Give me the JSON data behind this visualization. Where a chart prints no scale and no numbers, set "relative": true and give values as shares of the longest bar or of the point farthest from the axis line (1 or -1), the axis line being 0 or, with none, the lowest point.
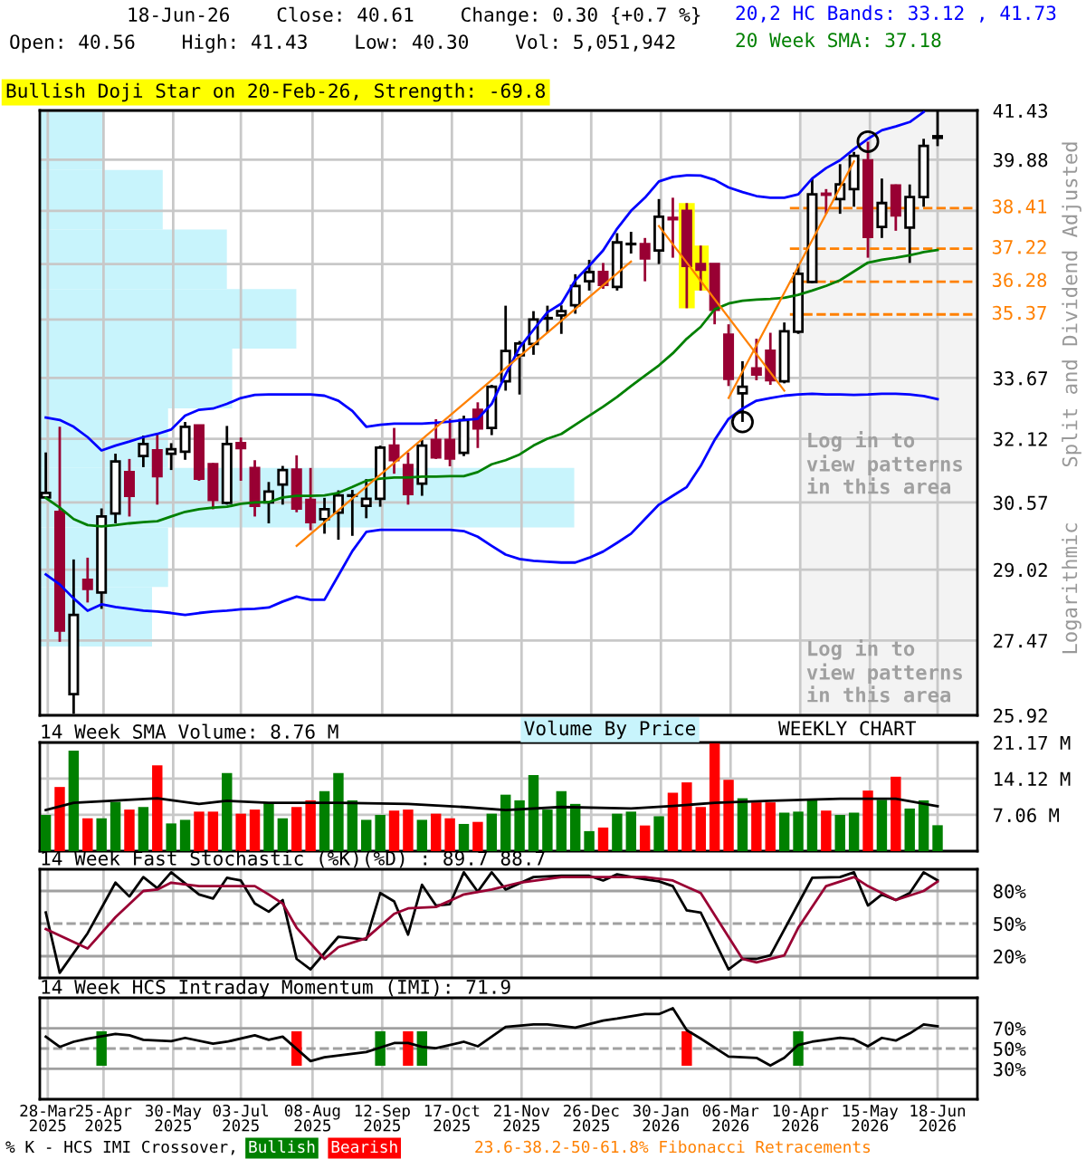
{
  "chart_data": [
    {
      "type": "candlestick",
      "title": "18-Jun-26    Close: 40.61    Change: 0.30 {+0.7 %}",
      "subtitle": "Open: 40.56    High: 41.43    Low: 40.30    Vol: 5,051,942",
      "ylabel": "Split and Dividend Adjusted",
      "annotations": [
        "Bullish Doji Star on 20-Feb-26, Strength: -69.8",
        "Log in to\nview patterns\nin this area",
        "Logarithmic",
        "WEEKLY CHART",
        "23.6-38.2-50-61.8% Fibonacci Retracements"
      ],
      "log": true,
      "grid": true,
      "tick_labels": "y",
      "colors": [
        "#ffffff",
        "#990033",
        "#ffffff",
        "#990033",
        "#ffffff",
        "#ffffff",
        "#990033",
        "#ffffff",
        "#990033",
        "#ffffff",
        "#ffffff",
        "#990033",
        "#990033",
        "#ffffff",
        "#990033",
        "#990033",
        "#ffffff",
        "#ffffff",
        "#990033",
        "#990033",
        "#ffffff",
        "#ffffff",
        "#ffffff",
        "#ffffff",
        "#ffffff",
        "#990033",
        "#990033",
        "#ffffff",
        "#990033",
        "#990033",
        "#ffffff",
        "#990033",
        "#ffffff",
        "#ffffff",
        "#ffffff",
        "#ffffff",
        "#ffffff",
        "#ffffff",
        "#ffffff",
        "#ffffff",
        "#990033",
        "#ffffff",
        "#ffffff",
        "#990033",
        "#ffffff",
        "#990033",
        "#990033",
        "#990033",
        "#990033",
        "#990033",
        "#ffffff",
        "#990033",
        "#990033",
        "#ffffff",
        "#ffffff",
        "#ffffff",
        "#990033",
        "#ffffff",
        "#ffffff",
        "#990033",
        "#ffffff",
        "#990033",
        "#ffffff",
        "#ffffff",
        "#ffffff"
      ],
      "xlim": [
        "2025-03-24",
        "2026-07-08"
      ],
      "ylim": [
        25.92,
        41.43
      ],
      "yticks": [
        41.43,
        39.88,
        {
          "value": 38.33,
          "label": null
        },
        {
          "value": 36.78,
          "label": null
        },
        {
          "value": 35.23,
          "label": null
        },
        33.67,
        32.12,
        30.57,
        29.02,
        27.47,
        25.92
      ],
      "xticks": [
        "2025-03-28",
        "2025-04-25",
        "2025-05-30",
        "2025-07-03",
        "2025-08-08",
        "2025-09-12",
        "2025-10-17",
        "2025-11-21",
        "2025-12-26",
        "2026-01-30",
        "2026-03-06",
        "2026-04-10",
        "2026-05-15",
        "2026-06-18"
      ],
      "x": [
        "2025-03-27",
        "2025-04-03",
        "2025-04-10",
        "2025-04-17",
        "2025-04-24",
        "2025-05-01",
        "2025-05-08",
        "2025-05-15",
        "2025-05-22",
        "2025-05-29",
        "2025-06-05",
        "2025-06-12",
        "2025-06-19",
        "2025-06-26",
        "2025-07-03",
        "2025-07-10",
        "2025-07-17",
        "2025-07-24",
        "2025-07-31",
        "2025-08-07",
        "2025-08-14",
        "2025-08-21",
        "2025-08-28",
        "2025-09-04",
        "2025-09-11",
        "2025-09-18",
        "2025-09-25",
        "2025-10-02",
        "2025-10-09",
        "2025-10-16",
        "2025-10-23",
        "2025-10-30",
        "2025-11-06",
        "2025-11-13",
        "2025-11-20",
        "2025-11-27",
        "2025-12-04",
        "2025-12-11",
        "2025-12-18",
        "2025-12-25",
        "2026-01-01",
        "2026-01-08",
        "2026-01-15",
        "2026-01-22",
        "2026-01-29",
        "2026-02-05",
        "2026-02-12",
        "2026-02-19",
        "2026-02-26",
        "2026-03-05",
        "2026-03-12",
        "2026-03-19",
        "2026-03-26",
        "2026-04-02",
        "2026-04-09",
        "2026-04-16",
        "2026-04-23",
        "2026-04-30",
        "2026-05-07",
        "2026-05-14",
        "2026-05-21",
        "2026-05-28",
        "2026-06-04",
        "2026-06-11",
        "2026-06-18"
      ],
      "ohlc": [
        [
          30.69,
          31.78,
          30.66,
          30.8
        ],
        [
          30.35,
          32.42,
          27.44,
          27.68
        ],
        [
          26.35,
          29.25,
          25.95,
          28.02
        ],
        [
          28.79,
          29.29,
          28.29,
          28.59
        ],
        [
          28.51,
          30.43,
          28.15,
          30.24
        ],
        [
          30.31,
          31.75,
          30.08,
          31.56
        ],
        [
          31.3,
          31.62,
          30.24,
          30.73
        ],
        [
          31.69,
          32.2,
          31.42,
          31.99
        ],
        [
          31.83,
          32.24,
          30.52,
          31.2
        ],
        [
          31.75,
          32.01,
          31.35,
          31.86
        ],
        [
          31.8,
          32.54,
          31.6,
          32.42
        ],
        [
          32.45,
          32.47,
          31.09,
          31.14
        ],
        [
          31.49,
          31.52,
          30.41,
          30.63
        ],
        [
          30.56,
          32.44,
          30.52,
          31.99
        ],
        [
          32.01,
          32.15,
          31.09,
          31.89
        ],
        [
          31.4,
          31.59,
          30.24,
          30.49
        ],
        [
          30.57,
          31.06,
          30.08,
          30.83
        ],
        [
          31.0,
          31.45,
          30.52,
          31.35
        ],
        [
          31.36,
          31.71,
          30.34,
          30.43
        ],
        [
          30.63,
          31.4,
          29.92,
          30.11
        ],
        [
          30.18,
          30.68,
          29.84,
          30.41
        ],
        [
          30.33,
          30.86,
          29.7,
          30.74
        ],
        [
          30.73,
          30.87,
          29.79,
          30.74
        ],
        [
          30.49,
          31.13,
          30.2,
          30.66
        ],
        [
          30.66,
          31.95,
          30.47,
          31.9
        ],
        [
          31.95,
          32.39,
          31.26,
          31.59
        ],
        [
          31.47,
          31.78,
          30.52,
          30.77
        ],
        [
          31.02,
          32.09,
          30.73,
          31.95
        ],
        [
          32.09,
          32.61,
          31.62,
          31.66
        ],
        [
          32.09,
          32.62,
          31.44,
          31.63
        ],
        [
          31.77,
          32.7,
          31.69,
          32.59
        ],
        [
          32.85,
          33.04,
          31.89,
          32.38
        ],
        [
          32.39,
          33.49,
          32.21,
          33.44
        ],
        [
          33.58,
          35.61,
          33.34,
          34.38
        ],
        [
          34.27,
          34.65,
          33.24,
          34.58
        ],
        [
          34.57,
          35.46,
          34.28,
          35.23
        ],
        [
          35.26,
          35.61,
          34.87,
          35.27
        ],
        [
          35.34,
          35.62,
          34.84,
          35.46
        ],
        [
          35.62,
          36.49,
          35.39,
          36.16
        ],
        [
          36.29,
          36.9,
          36.03,
          36.55
        ],
        [
          36.55,
          36.81,
          36.08,
          36.19
        ],
        [
          36.13,
          37.67,
          36.03,
          37.4
        ],
        [
          37.35,
          37.71,
          37.08,
          37.36
        ],
        [
          37.35,
          37.53,
          36.29,
          36.94
        ],
        [
          37.17,
          38.68,
          36.78,
          38.15
        ],
        [
          38.12,
          38.72,
          36.96,
          38.08
        ],
        [
          38.33,
          38.56,
          35.54,
          36.73
        ],
        [
          36.78,
          37.31,
          36.03,
          36.62
        ],
        [
          36.78,
          36.79,
          35.1,
          35.5
        ],
        [
          34.82,
          35.1,
          33.46,
          33.65
        ],
        [
          33.27,
          34.11,
          32.54,
          33.44
        ],
        [
          33.92,
          34.71,
          33.61,
          33.76
        ],
        [
          34.39,
          34.87,
          33.49,
          33.61
        ],
        [
          33.58,
          35.15,
          33.53,
          34.91
        ],
        [
          34.9,
          36.78,
          34.84,
          36.5
        ],
        [
          36.27,
          39.3,
          36.24,
          38.82
        ],
        [
          38.84,
          38.98,
          38.24,
          38.81
        ],
        [
          38.68,
          39.74,
          38.24,
          39.12
        ],
        [
          38.98,
          40.12,
          38.45,
          40.0
        ],
        [
          39.86,
          40.44,
          36.96,
          37.56
        ],
        [
          37.85,
          39.3,
          37.53,
          38.56
        ],
        [
          39.09,
          39.12,
          37.74,
          38.19
        ],
        [
          37.83,
          39.12,
          36.81,
          38.74
        ],
        [
          38.74,
          40.53,
          38.45,
          40.31
        ],
        [
          40.56,
          41.43,
          40.3,
          40.61
        ]
      ],
      "series": [
        {
          "name": "20,2 HC Bands: 33.12 , 41.73",
          "type": "line",
          "color": "#0000ff",
          "values": [
            32.65,
            32.59,
            32.42,
            32.16,
            31.83,
            31.95,
            32.05,
            32.16,
            32.24,
            32.35,
            32.7,
            32.85,
            32.88,
            33.0,
            33.15,
            33.23,
            33.24,
            33.24,
            33.24,
            33.24,
            33.21,
            33.08,
            32.82,
            32.42,
            32.47,
            32.5,
            32.5,
            32.5,
            32.52,
            32.55,
            32.59,
            32.62,
            33.0,
            33.76,
            34.47,
            34.95,
            35.43,
            35.67,
            36.32,
            36.73,
            37.17,
            37.8,
            38.33,
            38.72,
            39.21,
            39.35,
            39.4,
            39.39,
            39.26,
            39.03,
            38.89,
            38.77,
            38.72,
            38.72,
            38.82,
            39.3,
            39.62,
            39.86,
            40.21,
            40.53,
            40.8,
            40.92,
            41.06,
            41.38,
            null
          ]
        },
        {
          "type": "line",
          "color": "#0000ff",
          "values": [
            28.91,
            28.69,
            28.38,
            28.11,
            28.25,
            28.19,
            28.15,
            28.11,
            28.09,
            28.06,
            28.02,
            28.06,
            28.09,
            28.11,
            28.14,
            28.15,
            28.18,
            28.31,
            28.42,
            28.35,
            28.35,
            28.89,
            29.44,
            29.88,
            29.93,
            29.93,
            29.93,
            29.93,
            29.93,
            29.93,
            29.9,
            29.77,
            29.56,
            29.36,
            29.26,
            29.22,
            29.2,
            29.18,
            29.18,
            29.29,
            29.43,
            29.63,
            29.84,
            30.18,
            30.52,
            30.73,
            30.94,
            31.45,
            32.09,
            32.62,
            32.88,
            33.08,
            33.15,
            33.21,
            33.24,
            33.26,
            33.24,
            33.24,
            33.23,
            33.24,
            33.26,
            33.26,
            33.24,
            33.2,
            33.12
          ]
        },
        {
          "name": "20 Week SMA: 37.18",
          "type": "line",
          "color": "#008000",
          "values": [
            30.68,
            30.45,
            30.18,
            30.04,
            30.01,
            30.04,
            30.08,
            30.11,
            30.13,
            30.24,
            30.35,
            30.41,
            30.45,
            30.47,
            30.54,
            30.57,
            30.58,
            30.69,
            30.73,
            30.73,
            30.74,
            30.8,
            30.94,
            31.09,
            31.14,
            31.17,
            31.17,
            31.19,
            31.19,
            31.2,
            31.2,
            31.3,
            31.49,
            31.59,
            31.73,
            31.95,
            32.12,
            32.24,
            32.47,
            32.7,
            32.93,
            33.18,
            33.46,
            33.73,
            34.0,
            34.32,
            34.71,
            35.03,
            35.51,
            35.67,
            35.75,
            35.78,
            35.8,
            35.83,
            35.91,
            36.03,
            36.16,
            36.32,
            36.57,
            36.82,
            36.9,
            36.96,
            37.03,
            37.12,
            37.18
          ]
        },
        {
          "type": "line",
          "color": "#ff8000",
          "x": [
            "2025-07-31",
            "2026-01-15"
          ],
          "values": [
            29.56,
            36.85
          ]
        },
        {
          "type": "line",
          "color": "#ff8000",
          "x": [
            "2026-01-29",
            "2026-04-02"
          ],
          "values": [
            37.88,
            33.34
          ]
        },
        {
          "type": "line",
          "color": "#ff8000",
          "x": [
            "2026-03-05",
            "2026-05-07"
          ],
          "values": [
            33.15,
            39.83
          ]
        }
      ],
      "ref_lines": [
        {
          "axis": "y",
          "value": 38.41,
          "label": "38.41",
          "color": "#ff8000",
          "line_style": "dashed"
        },
        {
          "axis": "y",
          "value": 37.22,
          "label": "37.22",
          "color": "#ff8000",
          "line_style": "dashed"
        },
        {
          "axis": "y",
          "value": 36.28,
          "label": "36.28",
          "color": "#ff8000",
          "line_style": "dashed"
        },
        {
          "axis": "y",
          "value": 35.37,
          "label": "35.37",
          "color": "#ff8000",
          "line_style": "dashed"
        }
      ],
      "bands": [
        {
          "axis": "x",
          "from": "2026-04-10",
          "to": "2026-07-08",
          "label": "Log in to\nview patterns\nin this area",
          "color": "#f3f3f3"
        }
      ]
    },
    {
      "type": "bar",
      "orientation": "horizontal",
      "relative": true,
      "categories": [
        null,
        null,
        null,
        null,
        null,
        null,
        null,
        null,
        null
      ],
      "series": [
        {
          "name": "Volume By Price",
          "color": "#c8f4fc",
          "values": [
            0.12,
            0.23,
            0.35,
            0.48,
            0.36,
            0.24,
            1,
            0.24,
            0.21
          ]
        }
      ]
    },
    {
      "type": "bar",
      "title": "14 Week SMA Volume: 8.76 M",
      "grid": true,
      "tick_labels": "y",
      "xlim": [
        "2025-03-24",
        "2026-07-08"
      ],
      "ylim": [
        0,
        21.17
      ],
      "yticks": [
        {
          "value": 21.17,
          "label": "21.17 M"
        },
        {
          "value": 14.12,
          "label": "14.12 M"
        },
        {
          "value": 7.06,
          "label": "7.06 M"
        }
      ],
      "xticks": [
        "2025-03-28",
        "2025-04-25",
        "2025-05-30",
        "2025-07-03",
        "2025-08-08",
        "2025-09-12",
        "2025-10-17",
        "2025-11-21",
        "2025-12-26",
        "2026-01-30",
        "2026-03-06",
        "2026-04-10",
        "2026-05-15",
        "2026-06-18"
      ],
      "x": [
        "2025-03-27",
        "2025-04-03",
        "2025-04-10",
        "2025-04-17",
        "2025-04-24",
        "2025-05-01",
        "2025-05-08",
        "2025-05-15",
        "2025-05-22",
        "2025-05-29",
        "2025-06-05",
        "2025-06-12",
        "2025-06-19",
        "2025-06-26",
        "2025-07-03",
        "2025-07-10",
        "2025-07-17",
        "2025-07-24",
        "2025-07-31",
        "2025-08-07",
        "2025-08-14",
        "2025-08-21",
        "2025-08-28",
        "2025-09-04",
        "2025-09-11",
        "2025-09-18",
        "2025-09-25",
        "2025-10-02",
        "2025-10-09",
        "2025-10-16",
        "2025-10-23",
        "2025-10-30",
        "2025-11-06",
        "2025-11-13",
        "2025-11-20",
        "2025-11-27",
        "2025-12-04",
        "2025-12-11",
        "2025-12-18",
        "2025-12-25",
        "2026-01-01",
        "2026-01-08",
        "2026-01-15",
        "2026-01-22",
        "2026-01-29",
        "2026-02-05",
        "2026-02-12",
        "2026-02-19",
        "2026-02-26",
        "2026-03-05",
        "2026-03-12",
        "2026-03-19",
        "2026-03-26",
        "2026-04-02",
        "2026-04-09",
        "2026-04-16",
        "2026-04-23",
        "2026-04-30",
        "2026-05-07",
        "2026-05-14",
        "2026-05-21",
        "2026-05-28",
        "2026-06-04",
        "2026-06-11",
        "2026-06-18"
      ],
      "series": [
        {
          "type": "bar",
          "values": [
            7.06,
            12.5,
            19.6,
            6.4,
            6.4,
            9.6,
            8.1,
            8.6,
            16.7,
            5.4,
            6.1,
            7.7,
            7.7,
            15.2,
            7.3,
            8.1,
            9.5,
            6.4,
            8.6,
            9.9,
            11.7,
            15.2,
            9.9,
            6.1,
            7.06,
            7.9,
            8.1,
            6.1,
            7.3,
            6.4,
            5.3,
            5.7,
            7.3,
            11.0,
            9.9,
            14.8,
            8.1,
            11.7,
            9.2,
            3.9,
            4.6,
            7.3,
            7.7,
            5.0,
            6.8,
            11.4,
            13.4,
            8.6,
            21.0,
            13.9,
            10.3,
            9.5,
            9.5,
            7.5,
            7.7,
            10.0,
            7.9,
            7.06,
            7.5,
            11.8,
            10.0,
            14.5,
            8.3,
            9.9,
            5.05
          ],
          "colors": [
            "#008000",
            "#ff0000",
            "#008000",
            "#ff0000",
            "#008000",
            "#008000",
            "#ff0000",
            "#008000",
            "#ff0000",
            "#008000",
            "#008000",
            "#ff0000",
            "#ff0000",
            "#008000",
            "#ff0000",
            "#ff0000",
            "#008000",
            "#008000",
            "#ff0000",
            "#ff0000",
            "#008000",
            "#008000",
            "#008000",
            "#008000",
            "#008000",
            "#ff0000",
            "#ff0000",
            "#008000",
            "#ff0000",
            "#ff0000",
            "#008000",
            "#ff0000",
            "#008000",
            "#008000",
            "#008000",
            "#008000",
            "#008000",
            "#008000",
            "#008000",
            "#008000",
            "#ff0000",
            "#008000",
            "#008000",
            "#ff0000",
            "#008000",
            "#ff0000",
            "#ff0000",
            "#ff0000",
            "#ff0000",
            "#ff0000",
            "#008000",
            "#ff0000",
            "#ff0000",
            "#008000",
            "#008000",
            "#008000",
            "#ff0000",
            "#008000",
            "#008000",
            "#ff0000",
            "#008000",
            "#ff0000",
            "#008000",
            "#008000",
            "#008000"
          ]
        },
        {
          "type": "line",
          "color": "#000000",
          "x": [
            "2025-03-27",
            "2025-04-10",
            "2025-05-22",
            "2025-06-12",
            "2025-06-26",
            "2025-07-17",
            "2025-08-21",
            "2025-09-25",
            "2025-10-23",
            "2025-11-13",
            "2025-12-11",
            "2026-01-15",
            "2026-02-05",
            "2026-02-26",
            "2026-03-26",
            "2026-04-30",
            "2026-05-28",
            "2026-06-18"
          ],
          "values": [
            8.0,
            9.4,
            10.3,
            9.2,
            9.8,
            9.4,
            9.4,
            9.2,
            8.6,
            8.0,
            8.6,
            8.3,
            8.8,
            9.4,
            9.8,
            10.2,
            10.2,
            8.76
          ]
        }
      ]
    },
    {
      "type": "line",
      "title": "14 Week Fast Stochastic (%K)(%D) : 89.7 88.7",
      "grid": "x",
      "tick_labels": "y",
      "xlim": [
        "2025-03-24",
        "2026-07-08"
      ],
      "ylim": [
        0,
        100
      ],
      "yticks": [
        {
          "value": 80,
          "label": "80%"
        },
        {
          "value": 50,
          "label": "50%"
        },
        {
          "value": 20,
          "label": "20%"
        }
      ],
      "xticks": [
        "2025-03-28",
        "2025-04-25",
        "2025-05-30",
        "2025-07-03",
        "2025-08-08",
        "2025-09-12",
        "2025-10-17",
        "2025-11-21",
        "2025-12-26",
        "2026-01-30",
        "2026-03-06",
        "2026-04-10",
        "2026-05-15",
        "2026-06-18"
      ],
      "ref_lines": [
        {
          "axis": "y",
          "value": 80,
          "color": "#a0a0a0"
        },
        {
          "axis": "y",
          "value": 50,
          "color": "#a0a0a0",
          "line_style": "dashed"
        },
        {
          "axis": "y",
          "value": 20,
          "color": "#a0a0a0"
        }
      ],
      "series": [
        {
          "type": "line",
          "color": "#000000",
          "x": [
            "2025-03-27",
            "2025-04-03",
            "2025-04-17",
            "2025-05-01",
            "2025-05-08",
            "2025-05-15",
            "2025-05-22",
            "2025-05-29",
            "2025-06-12",
            "2025-06-19",
            "2025-06-26",
            "2025-07-03",
            "2025-07-10",
            "2025-07-17",
            "2025-07-24",
            "2025-07-31",
            "2025-08-07",
            "2025-08-21",
            "2025-09-04",
            "2025-09-11",
            "2025-09-18",
            "2025-09-25",
            "2025-10-02",
            "2025-10-09",
            "2025-10-16",
            "2025-10-23",
            "2025-10-30",
            "2025-11-06",
            "2025-11-13",
            "2025-11-27",
            "2025-12-11",
            "2025-12-25",
            "2026-01-01",
            "2026-01-08",
            "2026-01-22",
            "2026-01-29",
            "2026-02-05",
            "2026-02-12",
            "2026-02-19",
            "2026-03-05",
            "2026-03-12",
            "2026-03-19",
            "2026-03-26",
            "2026-04-16",
            "2026-04-30",
            "2026-05-07",
            "2026-05-14",
            "2026-05-21",
            "2026-05-28",
            "2026-06-04",
            "2026-06-11",
            "2026-06-18"
          ],
          "values": [
            60.2,
            4.7,
            41.1,
            87.7,
            74.9,
            92.8,
            82.6,
            97.2,
            76.8,
            73.0,
            92.1,
            89.6,
            68.5,
            60.9,
            71.7,
            17.5,
            7.9,
            37.9,
            35.3,
            78.1,
            70.4,
            39.8,
            85.7,
            66.6,
            67.9,
            97.2,
            79.4,
            97.2,
            81.3,
            92.8,
            94.0,
            94.0,
            89.6,
            95.3,
            90.8,
            88.9,
            84.5,
            62.1,
            60.2,
            7.9,
            17.5,
            17.5,
            20.7,
            92.1,
            92.8,
            97.2,
            66.6,
            76.8,
            71.7,
            78.1,
            97.2,
            89.7
          ]
        },
        {
          "type": "line",
          "color": "#990033",
          "x": [
            "2025-03-27",
            "2025-04-17",
            "2025-05-01",
            "2025-05-15",
            "2025-05-22",
            "2025-05-29",
            "2025-06-12",
            "2025-06-26",
            "2025-07-10",
            "2025-07-17",
            "2025-07-24",
            "2025-07-31",
            "2025-08-14",
            "2025-08-21",
            "2025-09-04",
            "2025-09-18",
            "2025-09-25",
            "2025-10-09",
            "2025-10-23",
            "2025-11-06",
            "2025-11-20",
            "2025-12-11",
            "2025-12-25",
            "2026-01-22",
            "2026-02-05",
            "2026-02-19",
            "2026-03-12",
            "2026-03-19",
            "2026-04-02",
            "2026-04-09",
            "2026-04-23",
            "2026-05-07",
            "2026-05-14",
            "2026-05-28",
            "2026-06-11",
            "2026-06-18"
          ],
          "values": [
            44.9,
            27.0,
            55.8,
            80.0,
            81.3,
            87.7,
            84.5,
            84.5,
            84.5,
            76.8,
            68.5,
            46.2,
            17.5,
            28.3,
            36.6,
            58.9,
            64.0,
            65.3,
            76.8,
            81.3,
            87.7,
            92.8,
            92.8,
            92.8,
            89.6,
            78.1,
            17.5,
            14.3,
            20.7,
            46.2,
            84.5,
            92.8,
            84.5,
            71.7,
            80.0,
            88.7
          ]
        }
      ]
    },
    {
      "type": "line",
      "title": "14 Week HCS Intraday Momentum (IMI): 71.9",
      "grid": "x",
      "legend": "bottom",
      "annotations": [
        "% K - HCS IMI Crossover,"
      ],
      "xlim": [
        "2025-03-24",
        "2026-07-08"
      ],
      "ylim": [
        0,
        100
      ],
      "yticks": [
        {
          "value": 70,
          "label": "70%"
        },
        {
          "value": 50,
          "label": "50%"
        },
        {
          "value": 30,
          "label": "30%"
        }
      ],
      "xticks": [
        {
          "value": "2025-03-28",
          "label": "28-Mar\n2025"
        },
        {
          "value": "2025-04-25",
          "label": "25-Apr\n2025"
        },
        {
          "value": "2025-05-30",
          "label": "30-May\n2025"
        },
        {
          "value": "2025-07-03",
          "label": "03-Jul\n2025"
        },
        {
          "value": "2025-08-08",
          "label": "08-Aug\n2025"
        },
        {
          "value": "2025-09-12",
          "label": "12-Sep\n2025"
        },
        {
          "value": "2025-10-17",
          "label": "17-Oct\n2025"
        },
        {
          "value": "2025-11-21",
          "label": "21-Nov\n2025"
        },
        {
          "value": "2025-12-26",
          "label": "26-Dec\n2025"
        },
        {
          "value": "2026-01-30",
          "label": "30-Jan\n2026"
        },
        {
          "value": "2026-03-06",
          "label": "06-Mar\n2026"
        },
        {
          "value": "2026-04-10",
          "label": "10-Apr\n2026"
        },
        {
          "value": "2026-05-15",
          "label": "15-May\n2026"
        },
        {
          "value": "2026-06-18",
          "label": "18-Jun\n2026"
        }
      ],
      "ref_lines": [
        {
          "axis": "y",
          "value": 70,
          "color": "#a0a0a0"
        },
        {
          "axis": "y",
          "value": 50,
          "color": "#a0a0a0",
          "line_style": "dashed"
        },
        {
          "axis": "y",
          "value": 30,
          "color": "#a0a0a0"
        }
      ],
      "series": [
        {
          "type": "line",
          "color": "#000000",
          "x": [
            "2025-03-27",
            "2025-04-03",
            "2025-04-10",
            "2025-04-17",
            "2025-05-01",
            "2025-05-08",
            "2025-05-15",
            "2025-05-29",
            "2025-06-05",
            "2025-06-19",
            "2025-06-26",
            "2025-07-10",
            "2025-07-17",
            "2025-07-24",
            "2025-08-07",
            "2025-08-14",
            "2025-09-04",
            "2025-09-18",
            "2025-09-25",
            "2025-10-02",
            "2025-10-09",
            "2025-10-23",
            "2025-10-30",
            "2025-11-13",
            "2025-11-27",
            "2025-12-04",
            "2025-12-18",
            "2026-01-01",
            "2026-01-08",
            "2026-01-22",
            "2026-01-29",
            "2026-02-05",
            "2026-02-12",
            "2026-02-19",
            "2026-03-05",
            "2026-03-19",
            "2026-03-26",
            "2026-04-02",
            "2026-04-09",
            "2026-04-16",
            "2026-04-30",
            "2026-05-07",
            "2026-05-14",
            "2026-05-21",
            "2026-05-28",
            "2026-06-04",
            "2026-06-11",
            "2026-06-18"
          ],
          "values": [
            61.7,
            51.6,
            56.7,
            59.8,
            64.3,
            63.0,
            58.6,
            57.3,
            60.5,
            54.8,
            56.7,
            63.0,
            58.6,
            61.7,
            37.6,
            41.4,
            46.5,
            55.4,
            55.4,
            51.6,
            50.3,
            56.7,
            52.2,
            71.3,
            73.8,
            73.8,
            70.6,
            77.6,
            79.5,
            84.0,
            84.0,
            89.7,
            68.1,
            59.8,
            42.1,
            40.8,
            33.2,
            40.8,
            53.5,
            56.7,
            60.5,
            59.2,
            52.2,
            60.5,
            57.9,
            64.9,
            73.8,
            71.9
          ]
        },
        {
          "name": "Bullish",
          "type": "bar",
          "color": "#008000",
          "x": [
            "2025-04-24",
            "2025-09-11",
            "2025-10-02",
            "2026-04-09"
          ],
          "base": [
            33,
            33,
            33,
            33
          ],
          "values": [
            34,
            34,
            34,
            34
          ]
        },
        {
          "name": "Bearish",
          "type": "bar",
          "color": "#ff0000",
          "x": [
            "2025-07-31",
            "2025-09-25",
            "2026-02-12"
          ],
          "base": [
            33,
            33,
            33
          ],
          "values": [
            34,
            34,
            34
          ]
        }
      ]
    }
  ]
}
